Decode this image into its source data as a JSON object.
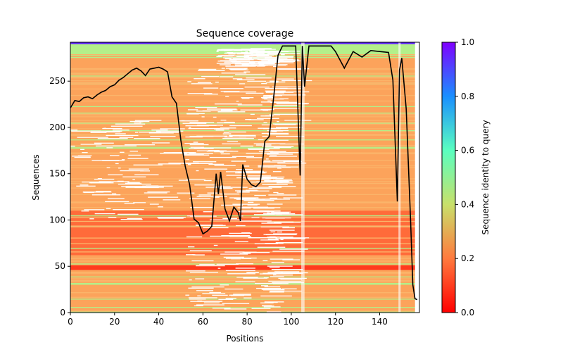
{
  "chart_data": {
    "type": "heatmap",
    "title": "Sequence coverage",
    "xlabel": "Positions",
    "ylabel": "Sequences",
    "xlim": [
      0,
      158
    ],
    "ylim": [
      0,
      292
    ],
    "xticks": [
      0,
      20,
      40,
      60,
      80,
      100,
      120,
      140
    ],
    "yticks": [
      0,
      50,
      100,
      150,
      200,
      250
    ],
    "colorbar": {
      "label": "Sequence identity to query",
      "range": [
        0.0,
        1.0
      ],
      "ticks": [
        "0.0",
        "0.2",
        "0.4",
        "0.6",
        "0.8",
        "1.0"
      ],
      "colormap": "rainbow_r"
    },
    "series": [
      {
        "name": "coverage",
        "color": "#000000",
        "x": [
          0,
          2,
          4,
          6,
          8,
          10,
          12,
          14,
          16,
          18,
          20,
          22,
          24,
          26,
          28,
          30,
          32,
          34,
          36,
          38,
          40,
          42,
          44,
          46,
          48,
          50,
          52,
          54,
          56,
          58,
          60,
          62,
          64,
          66,
          67,
          68,
          70,
          72,
          74,
          76,
          77,
          78,
          80,
          82,
          84,
          86,
          88,
          90,
          92,
          94,
          96,
          98,
          100,
          102,
          104,
          105,
          106,
          108,
          110,
          114,
          118,
          120,
          124,
          128,
          132,
          136,
          140,
          144,
          146,
          148,
          149,
          150,
          152,
          154,
          155,
          156,
          157
        ],
        "y": [
          221,
          229,
          228,
          232,
          233,
          231,
          235,
          238,
          240,
          244,
          246,
          251,
          254,
          258,
          262,
          264,
          261,
          256,
          263,
          264,
          265,
          263,
          260,
          233,
          226,
          186,
          158,
          138,
          101,
          97,
          85,
          88,
          93,
          150,
          128,
          152,
          112,
          99,
          114,
          108,
          99,
          160,
          144,
          138,
          136,
          141,
          185,
          190,
          232,
          278,
          288,
          288,
          288,
          288,
          148,
          288,
          244,
          288,
          288,
          288,
          288,
          282,
          264,
          282,
          276,
          283,
          282,
          281,
          251,
          120,
          262,
          275,
          220,
          100,
          30,
          15,
          14
        ]
      }
    ],
    "heatmap_colors": {
      "orange": "#fca35b",
      "light_orange": "#fbb46a",
      "red_orange": "#ff6b3a",
      "red": "#ff3a1e",
      "green": "#b3f08a",
      "purple": "#5a1fff"
    }
  }
}
